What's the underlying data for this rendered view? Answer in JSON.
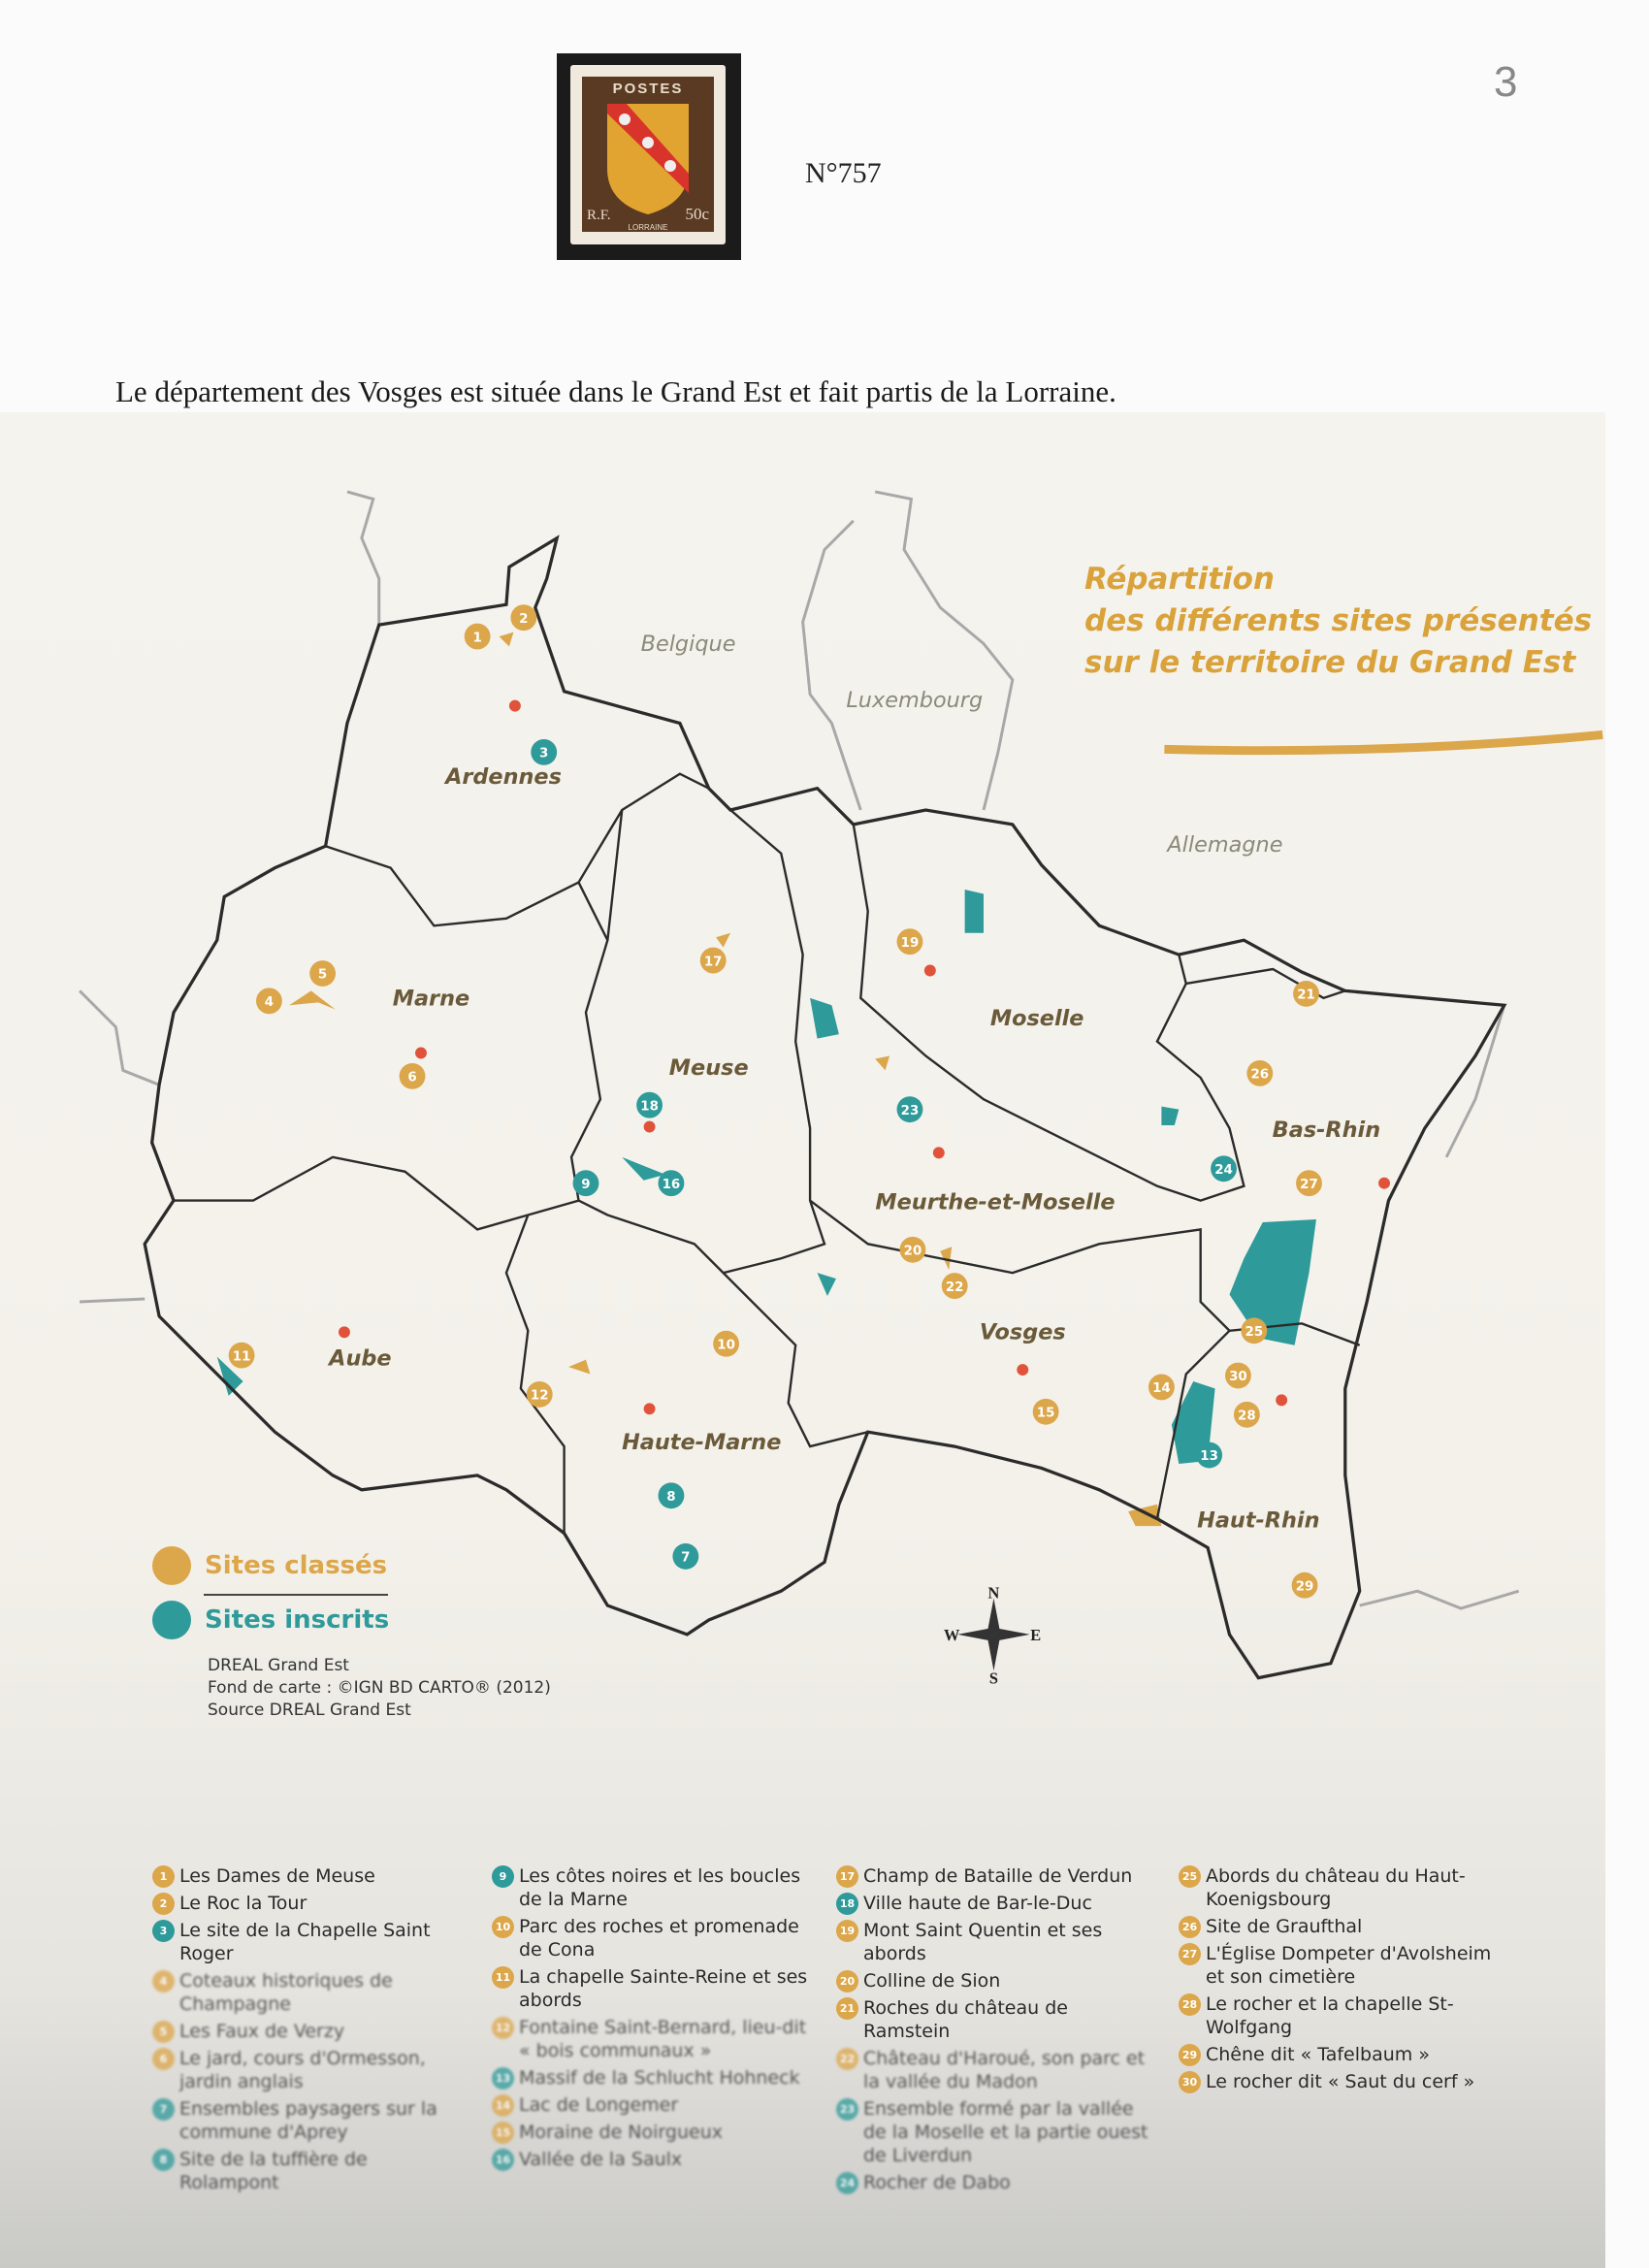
{
  "page_number": "3",
  "stamp": {
    "top_text": "POSTES",
    "left_text": "R.F.",
    "value": "50c",
    "name": "LORRAINE",
    "catalog_number": "N°757"
  },
  "intro_text": "Le département des Vosges est située dans le Grand Est et fait partis de la Lorraine.",
  "map": {
    "title_lines": [
      "Répartition",
      "des différents sites présentés",
      "sur le territoire du Grand Est"
    ],
    "countries": {
      "belgique": "Belgique",
      "luxembourg": "Luxembourg",
      "allemagne": "Allemagne"
    },
    "departments": {
      "ardennes": "Ardennes",
      "marne": "Marne",
      "meuse": "Meuse",
      "moselle": "Moselle",
      "bas_rhin": "Bas-Rhin",
      "meurthe": "Meurthe-et-Moselle",
      "aube": "Aube",
      "haute_marne": "Haute-Marne",
      "vosges": "Vosges",
      "haut_rhin": "Haut-Rhin"
    },
    "compass": {
      "n": "N",
      "s": "S",
      "e": "E",
      "w": "W"
    },
    "legend": {
      "classes": "Sites classés",
      "inscrits": "Sites inscrits"
    },
    "credits": [
      "DREAL Grand Est",
      "Fond de carte : ©IGN BD CARTO® (2012)",
      "Source DREAL Grand Est"
    ],
    "colors": {
      "classe": "#dca64a",
      "inscrit": "#2e9a9a",
      "border": "#2b2b2b",
      "foreign_border": "#a8a8a8",
      "prefecture": "#e0533a"
    }
  },
  "sites": [
    {
      "n": "1",
      "type": "classe",
      "name": "Les Dames de Meuse"
    },
    {
      "n": "2",
      "type": "classe",
      "name": "Le Roc la Tour"
    },
    {
      "n": "3",
      "type": "inscrit",
      "name": "Le site de la Chapelle Saint Roger"
    },
    {
      "n": "4",
      "type": "classe",
      "name": "Coteaux historiques de Champagne"
    },
    {
      "n": "5",
      "type": "classe",
      "name": "Les Faux de Verzy"
    },
    {
      "n": "6",
      "type": "classe",
      "name": "Le jard, cours d'Ormesson, jardin anglais"
    },
    {
      "n": "7",
      "type": "inscrit",
      "name": "Ensembles paysagers sur la commune d'Aprey"
    },
    {
      "n": "8",
      "type": "inscrit",
      "name": "Site de la tuffière de Rolampont"
    },
    {
      "n": "9",
      "type": "inscrit",
      "name": "Les côtes noires et les boucles de la Marne"
    },
    {
      "n": "10",
      "type": "classe",
      "name": "Parc des roches et promenade de Cona"
    },
    {
      "n": "11",
      "type": "classe",
      "name": "La chapelle Sainte-Reine et ses abords"
    },
    {
      "n": "12",
      "type": "classe",
      "name": "Fontaine Saint-Bernard, lieu-dit « bois communaux »"
    },
    {
      "n": "13",
      "type": "inscrit",
      "name": "Massif de la Schlucht Hohneck"
    },
    {
      "n": "14",
      "type": "classe",
      "name": "Lac de Longemer"
    },
    {
      "n": "15",
      "type": "classe",
      "name": "Moraine de Noirgueux"
    },
    {
      "n": "16",
      "type": "inscrit",
      "name": "Vallée de la Saulx"
    },
    {
      "n": "17",
      "type": "classe",
      "name": "Champ de Bataille de Verdun"
    },
    {
      "n": "18",
      "type": "inscrit",
      "name": "Ville haute de Bar-le-Duc"
    },
    {
      "n": "19",
      "type": "classe",
      "name": "Mont Saint Quentin et ses abords"
    },
    {
      "n": "20",
      "type": "classe",
      "name": "Colline de Sion"
    },
    {
      "n": "21",
      "type": "classe",
      "name": "Roches du château de Ramstein"
    },
    {
      "n": "22",
      "type": "classe",
      "name": "Château d'Haroué, son parc et la vallée du Madon"
    },
    {
      "n": "23",
      "type": "inscrit",
      "name": "Ensemble formé par la vallée de la Moselle et la partie ouest de Liverdun"
    },
    {
      "n": "24",
      "type": "inscrit",
      "name": "Rocher de Dabo"
    },
    {
      "n": "25",
      "type": "classe",
      "name": "Abords du château du Haut-Koenigsbourg"
    },
    {
      "n": "26",
      "type": "classe",
      "name": "Site de Graufthal"
    },
    {
      "n": "27",
      "type": "classe",
      "name": "L'Église Dompeter d'Avolsheim et son cimetière"
    },
    {
      "n": "28",
      "type": "classe",
      "name": "Le rocher et la chapelle St-Wolfgang"
    },
    {
      "n": "29",
      "type": "classe",
      "name": "Chêne dit « Tafelbaum »"
    },
    {
      "n": "30",
      "type": "classe",
      "name": "Le rocher dit « Saut du cerf »"
    }
  ]
}
